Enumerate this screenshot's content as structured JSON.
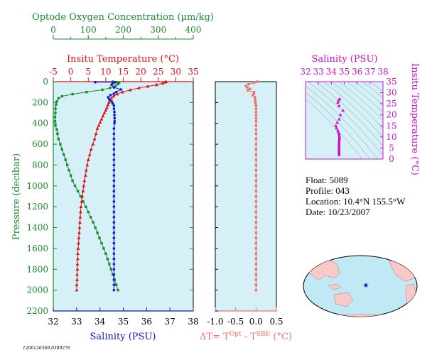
{
  "colors": {
    "oxygen": "#1a8a2e",
    "temperature": "#e01010",
    "salinity": "#0a1acc",
    "delta": "#f07070",
    "ts": "#cc10cc",
    "panel_bg": "#d6f0f7",
    "axis_black": "#000000"
  },
  "main_panel": {
    "top_axis_oxygen": {
      "title": "Optode Oxygen Concentration (µm/kg)",
      "ticks": [
        "0",
        "100",
        "200",
        "300",
        "400"
      ]
    },
    "top_axis_temperature": {
      "title": "Insitu Temperature (°C)",
      "ticks": [
        "-5",
        "0",
        "5",
        "10",
        "15",
        "20",
        "25",
        "30",
        "35"
      ]
    },
    "left_axis": {
      "title": "Pressure (decibar)",
      "ticks": [
        "0",
        "200",
        "400",
        "600",
        "800",
        "1000",
        "1200",
        "1400",
        "1600",
        "1800",
        "2000",
        "2200"
      ]
    },
    "bottom_axis": {
      "title": "Salinity (PSU)",
      "ticks": [
        "32",
        "33",
        "34",
        "35",
        "36",
        "37",
        "38"
      ]
    }
  },
  "delta_panel": {
    "bottom_ticks": [
      "-1.0",
      "-0.5",
      "0.0",
      "0.5"
    ],
    "bottom_title": "ΔT= T",
    "title_sup1": "Opt",
    "title_mid": " - T",
    "title_sup2": "SBE",
    "title_end": " (°C)"
  },
  "ts_panel": {
    "top_title": "Salinity (PSU)",
    "top_ticks": [
      "32",
      "33",
      "34",
      "35",
      "36",
      "37",
      "38"
    ],
    "right_title": "Insitu Temperature (°C)",
    "right_ticks": [
      "0",
      "5",
      "10",
      "15",
      "20",
      "25",
      "30",
      "35"
    ]
  },
  "info": {
    "float_line": "Float:  5089",
    "profile_line": "Profile:  043",
    "location_line": "Location:  10.4°N  155.5°W",
    "date_line": "Date:  10/23/2007"
  },
  "footer_id": "1206126369.0389276",
  "chart_data": [
    {
      "type": "scatter",
      "title": "",
      "ylabel": "Pressure (decibar)",
      "ylim": [
        0,
        2200
      ],
      "y_inverted": true,
      "series": [
        {
          "name": "Optode Oxygen Concentration (µm/kg)",
          "axis": "oxygen",
          "xlim": [
            0,
            400
          ],
          "marker": "square",
          "points": [
            [
              170,
              0
            ],
            [
              185,
              5
            ],
            [
              188,
              12
            ],
            [
              184,
              25
            ],
            [
              178,
              40
            ],
            [
              162,
              60
            ],
            [
              140,
              78
            ],
            [
              95,
              100
            ],
            [
              55,
              120
            ],
            [
              25,
              140
            ],
            [
              15,
              160
            ],
            [
              10,
              190
            ],
            [
              8,
              220
            ],
            [
              6,
              260
            ],
            [
              6,
              300
            ],
            [
              5,
              340
            ],
            [
              5,
              380
            ],
            [
              6,
              420
            ],
            [
              10,
              460
            ],
            [
              12,
              500
            ],
            [
              15,
              550
            ],
            [
              20,
              600
            ],
            [
              25,
              650
            ],
            [
              30,
              700
            ],
            [
              35,
              750
            ],
            [
              40,
              800
            ],
            [
              45,
              850
            ],
            [
              50,
              900
            ],
            [
              55,
              950
            ],
            [
              62,
              1000
            ],
            [
              70,
              1050
            ],
            [
              78,
              1100
            ],
            [
              85,
              1150
            ],
            [
              93,
              1200
            ],
            [
              100,
              1250
            ],
            [
              107,
              1300
            ],
            [
              114,
              1350
            ],
            [
              120,
              1400
            ],
            [
              126,
              1450
            ],
            [
              132,
              1500
            ],
            [
              138,
              1550
            ],
            [
              144,
              1600
            ],
            [
              150,
              1650
            ],
            [
              155,
              1700
            ],
            [
              160,
              1750
            ],
            [
              165,
              1800
            ],
            [
              170,
              1850
            ],
            [
              175,
              1900
            ],
            [
              180,
              1950
            ],
            [
              185,
              2000
            ]
          ]
        },
        {
          "name": "Insitu Temperature (°C)",
          "axis": "temperature",
          "xlim": [
            -5,
            35
          ],
          "marker": "triangle",
          "points": [
            [
              27.2,
              0
            ],
            [
              27.0,
              5
            ],
            [
              26.3,
              15
            ],
            [
              24.5,
              30
            ],
            [
              22.0,
              45
            ],
            [
              19.5,
              60
            ],
            [
              17.0,
              80
            ],
            [
              14.8,
              100
            ],
            [
              13.2,
              120
            ],
            [
              12.2,
              140
            ],
            [
              11.6,
              160
            ],
            [
              11.2,
              180
            ],
            [
              10.9,
              200
            ],
            [
              10.6,
              225
            ],
            [
              10.3,
              250
            ],
            [
              10.0,
              275
            ],
            [
              9.6,
              300
            ],
            [
              9.2,
              330
            ],
            [
              8.8,
              360
            ],
            [
              8.4,
              390
            ],
            [
              8.0,
              420
            ],
            [
              7.6,
              450
            ],
            [
              7.2,
              500
            ],
            [
              6.8,
              550
            ],
            [
              6.3,
              600
            ],
            [
              5.8,
              650
            ],
            [
              5.4,
              700
            ],
            [
              5.0,
              750
            ],
            [
              4.7,
              800
            ],
            [
              4.4,
              850
            ],
            [
              4.2,
              900
            ],
            [
              3.9,
              950
            ],
            [
              3.7,
              1000
            ],
            [
              3.5,
              1050
            ],
            [
              3.3,
              1100
            ],
            [
              3.1,
              1150
            ],
            [
              2.9,
              1200
            ],
            [
              2.8,
              1250
            ],
            [
              2.7,
              1300
            ],
            [
              2.6,
              1350
            ],
            [
              2.5,
              1400
            ],
            [
              2.4,
              1450
            ],
            [
              2.3,
              1500
            ],
            [
              2.2,
              1550
            ],
            [
              2.1,
              1600
            ],
            [
              2.0,
              1650
            ],
            [
              2.0,
              1700
            ],
            [
              1.9,
              1750
            ],
            [
              1.9,
              1800
            ],
            [
              1.8,
              1850
            ],
            [
              1.8,
              1900
            ],
            [
              1.7,
              1950
            ],
            [
              1.7,
              2000
            ]
          ]
        },
        {
          "name": "Salinity (PSU)",
          "axis": "salinity",
          "xlim": [
            32,
            38
          ],
          "marker": "circle",
          "points": [
            [
              33.8,
              5
            ],
            [
              34.65,
              5
            ],
            [
              34.55,
              15
            ],
            [
              34.5,
              30
            ],
            [
              34.6,
              55
            ],
            [
              34.9,
              75
            ],
            [
              34.7,
              100
            ],
            [
              34.6,
              115
            ],
            [
              34.45,
              130
            ],
            [
              34.35,
              150
            ],
            [
              34.4,
              170
            ],
            [
              34.5,
              190
            ],
            [
              34.55,
              210
            ],
            [
              34.6,
              230
            ],
            [
              34.6,
              260
            ],
            [
              34.62,
              290
            ],
            [
              34.62,
              320
            ],
            [
              34.63,
              350
            ],
            [
              34.63,
              380
            ],
            [
              34.62,
              400
            ],
            [
              34.6,
              450
            ],
            [
              34.6,
              500
            ],
            [
              34.6,
              550
            ],
            [
              34.6,
              600
            ],
            [
              34.6,
              650
            ],
            [
              34.6,
              700
            ],
            [
              34.6,
              750
            ],
            [
              34.6,
              800
            ],
            [
              34.6,
              850
            ],
            [
              34.6,
              900
            ],
            [
              34.6,
              950
            ],
            [
              34.6,
              1000
            ],
            [
              34.6,
              1050
            ],
            [
              34.6,
              1100
            ],
            [
              34.6,
              1150
            ],
            [
              34.6,
              1200
            ],
            [
              34.6,
              1250
            ],
            [
              34.6,
              1300
            ],
            [
              34.6,
              1350
            ],
            [
              34.6,
              1400
            ],
            [
              34.6,
              1450
            ],
            [
              34.6,
              1500
            ],
            [
              34.6,
              1550
            ],
            [
              34.6,
              1600
            ],
            [
              34.6,
              1650
            ],
            [
              34.6,
              1700
            ],
            [
              34.6,
              1750
            ],
            [
              34.6,
              1800
            ],
            [
              34.6,
              1850
            ],
            [
              34.6,
              1900
            ],
            [
              34.6,
              1950
            ],
            [
              34.6,
              2000
            ]
          ]
        }
      ]
    },
    {
      "type": "scatter",
      "xlabel": "ΔT= TOpt - TSBE (°C)",
      "xlim": [
        -1.0,
        0.5
      ],
      "ylim": [
        0,
        2200
      ],
      "y_inverted": true,
      "series": [
        {
          "marker": "square",
          "points": [
            [
              0.03,
              0
            ],
            [
              -0.05,
              10
            ],
            [
              -0.18,
              25
            ],
            [
              -0.25,
              40
            ],
            [
              -0.22,
              55
            ],
            [
              -0.15,
              70
            ],
            [
              -0.2,
              85
            ],
            [
              -0.05,
              100
            ],
            [
              -0.05,
              115
            ],
            [
              -0.08,
              130
            ],
            [
              -0.03,
              150
            ],
            [
              -0.02,
              170
            ],
            [
              -0.02,
              190
            ],
            [
              -0.01,
              210
            ],
            [
              0.0,
              230
            ],
            [
              0.0,
              260
            ],
            [
              0.0,
              290
            ],
            [
              0.0,
              320
            ],
            [
              0.0,
              350
            ],
            [
              0.0,
              380
            ],
            [
              0.0,
              420
            ],
            [
              0.0,
              460
            ],
            [
              0.0,
              500
            ],
            [
              0.0,
              550
            ],
            [
              0.0,
              600
            ],
            [
              0.0,
              650
            ],
            [
              0.0,
              700
            ],
            [
              0.0,
              750
            ],
            [
              0.0,
              800
            ],
            [
              0.0,
              850
            ],
            [
              0.0,
              900
            ],
            [
              0.0,
              950
            ],
            [
              0.0,
              1000
            ],
            [
              0.0,
              1050
            ],
            [
              0.0,
              1100
            ],
            [
              0.0,
              1150
            ],
            [
              0.0,
              1200
            ],
            [
              0.0,
              1250
            ],
            [
              0.0,
              1300
            ],
            [
              0.0,
              1350
            ],
            [
              0.0,
              1400
            ],
            [
              0.0,
              1450
            ],
            [
              0.0,
              1500
            ],
            [
              0.0,
              1550
            ],
            [
              0.0,
              1600
            ],
            [
              0.0,
              1650
            ],
            [
              0.0,
              1700
            ],
            [
              0.0,
              1750
            ],
            [
              0.0,
              1800
            ],
            [
              0.0,
              1850
            ],
            [
              0.0,
              1900
            ],
            [
              0.0,
              1950
            ],
            [
              0.0,
              2000
            ]
          ]
        }
      ]
    },
    {
      "type": "scatter",
      "xlabel": "Salinity (PSU)",
      "ylabel": "Insitu Temperature (°C)",
      "xlim": [
        32,
        38
      ],
      "ylim": [
        0,
        35
      ],
      "series": [
        {
          "marker": "triangle",
          "points": [
            [
              34.65,
              27.2
            ],
            [
              34.55,
              26.5
            ],
            [
              34.5,
              25.5
            ],
            [
              34.6,
              24.0
            ],
            [
              34.9,
              22.0
            ],
            [
              34.7,
              20.0
            ],
            [
              34.6,
              18.0
            ],
            [
              34.45,
              16.5
            ],
            [
              34.35,
              15.0
            ],
            [
              34.4,
              14.0
            ],
            [
              34.5,
              13.0
            ],
            [
              34.55,
              12.0
            ]
          ]
        },
        {
          "marker": "circle",
          "points": [
            [
              34.6,
              11.0
            ],
            [
              34.62,
              10.5
            ],
            [
              34.62,
              10.0
            ],
            [
              34.63,
              9.5
            ],
            [
              34.63,
              9.0
            ],
            [
              34.62,
              8.5
            ],
            [
              34.6,
              8.0
            ],
            [
              34.6,
              7.5
            ],
            [
              34.6,
              7.0
            ],
            [
              34.6,
              6.5
            ],
            [
              34.6,
              6.0
            ],
            [
              34.6,
              5.5
            ],
            [
              34.6,
              5.0
            ],
            [
              34.6,
              4.5
            ],
            [
              34.6,
              4.0
            ],
            [
              34.6,
              3.5
            ],
            [
              34.6,
              3.0
            ],
            [
              34.6,
              2.5
            ],
            [
              34.6,
              2.0
            ],
            [
              34.6,
              1.8
            ]
          ]
        }
      ]
    }
  ]
}
